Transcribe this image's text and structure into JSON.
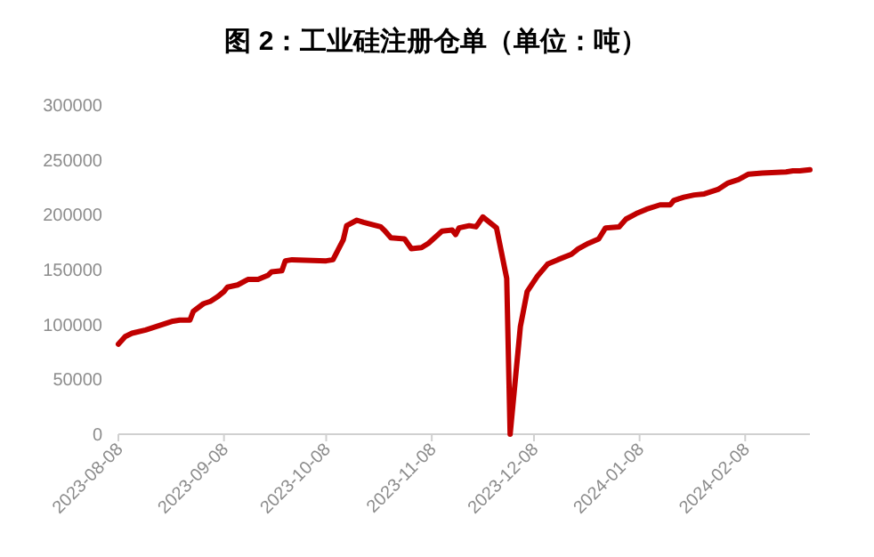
{
  "chart_data": {
    "type": "line",
    "title": "图 2：工业硅注册仓单（单位：吨）",
    "x": [
      "2023-08-08",
      "2023-08-10",
      "2023-08-12",
      "2023-08-16",
      "2023-08-19",
      "2023-08-21",
      "2023-08-24",
      "2023-08-26",
      "2023-08-29",
      "2023-08-30",
      "2023-09-02",
      "2023-09-04",
      "2023-09-06",
      "2023-09-08",
      "2023-09-09",
      "2023-09-12",
      "2023-09-15",
      "2023-09-18",
      "2023-09-21",
      "2023-09-22",
      "2023-09-25",
      "2023-09-26",
      "2023-09-28",
      "2023-10-08",
      "2023-10-10",
      "2023-10-13",
      "2023-10-14",
      "2023-10-17",
      "2023-10-19",
      "2023-10-24",
      "2023-10-25",
      "2023-10-27",
      "2023-10-31",
      "2023-11-02",
      "2023-11-05",
      "2023-11-07",
      "2023-11-11",
      "2023-11-14",
      "2023-11-15",
      "2023-11-16",
      "2023-11-19",
      "2023-11-21",
      "2023-11-23",
      "2023-11-27",
      "2023-11-30",
      "2023-12-01",
      "2023-12-04",
      "2023-12-06",
      "2023-12-09",
      "2023-12-12",
      "2023-12-15",
      "2023-12-19",
      "2023-12-21",
      "2023-12-24",
      "2023-12-27",
      "2023-12-29",
      "2024-01-02",
      "2024-01-04",
      "2024-01-07",
      "2024-01-10",
      "2024-01-14",
      "2024-01-17",
      "2024-01-18",
      "2024-01-21",
      "2024-01-24",
      "2024-01-27",
      "2024-01-31",
      "2024-02-03",
      "2024-02-06",
      "2024-02-09",
      "2024-02-13",
      "2024-02-20",
      "2024-02-22",
      "2024-02-24",
      "2024-02-27"
    ],
    "series": [
      {
        "color": "#c00000",
        "values": [
          82000,
          89000,
          92000,
          95000,
          98000,
          100000,
          103000,
          104000,
          104000,
          112000,
          119000,
          121000,
          125000,
          130000,
          134000,
          136000,
          141000,
          141000,
          145000,
          148000,
          149000,
          158000,
          159000,
          158000,
          159000,
          177000,
          190000,
          195000,
          193000,
          189000,
          186000,
          179000,
          178000,
          169000,
          170000,
          174000,
          185000,
          186000,
          182000,
          188000,
          190000,
          189000,
          198000,
          188000,
          142000,
          0,
          98000,
          130000,
          144000,
          155000,
          159000,
          164000,
          169000,
          174000,
          178000,
          188000,
          189000,
          196000,
          201000,
          205000,
          209000,
          209000,
          213000,
          216000,
          218000,
          219000,
          223000,
          229000,
          232000,
          237000,
          238000,
          239000,
          240000,
          240000,
          241000
        ]
      }
    ],
    "xlim": [
      "2023-08-08",
      "2024-02-27"
    ],
    "xticks": [
      "2023-08-08",
      "2023-09-08",
      "2023-10-08",
      "2023-11-08",
      "2023-12-08",
      "2024-01-08",
      "2024-02-08"
    ],
    "ylim": [
      0,
      300000
    ],
    "yticks": [
      0,
      50000,
      100000,
      150000,
      200000,
      250000,
      300000
    ],
    "grid": false,
    "marker": "none",
    "line_style": "solid"
  }
}
